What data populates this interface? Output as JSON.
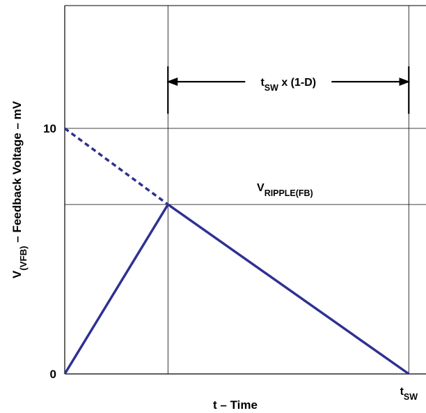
{
  "chart_data": {
    "type": "line",
    "xlabel": "t – Time",
    "ylabel": {
      "v": "V",
      "sub": "(VFB)",
      "rest": "– Feedback Voltage – mV"
    },
    "y_ticks": [
      {
        "value": 0,
        "label": "0"
      },
      {
        "value": 10,
        "label": "10"
      }
    ],
    "x_ticks": [
      {
        "value": 1.0,
        "label_main": "t",
        "label_sub": "SW"
      }
    ],
    "xlim": [
      0,
      1.05
    ],
    "ylim": [
      0,
      15
    ],
    "grid": true,
    "vertical_gridlines": [
      0.3,
      1.0
    ],
    "horizontal_gridlines": [
      6.9,
      10
    ],
    "series": [
      {
        "style": "solid",
        "color": "#2e3192",
        "x": [
          0,
          0.3,
          1.0
        ],
        "y": [
          0,
          6.9,
          0
        ]
      },
      {
        "style": "dashed",
        "color": "#2e3192",
        "x": [
          0,
          0.3
        ],
        "y": [
          10,
          6.9
        ]
      }
    ],
    "annotations": {
      "duration": {
        "x_start": 0.3,
        "x_end": 1.0,
        "y": 11.9,
        "text_main": "t",
        "text_sub": "SW",
        "text_rest": " x (1-D)"
      },
      "ripple": {
        "x": 0.64,
        "y": 7.45,
        "text_main": "V",
        "text_sub": "RIPPLE(FB)"
      }
    }
  }
}
